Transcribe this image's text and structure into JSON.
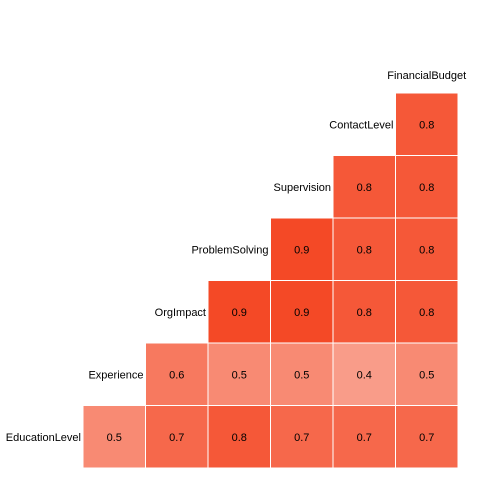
{
  "chart_data": {
    "type": "heatmap",
    "subtype": "lower-triangular correlation matrix",
    "variables": [
      "EducationLevel",
      "Experience",
      "OrgImpact",
      "ProblemSolving",
      "Supervision",
      "ContactLevel",
      "FinancialBudget"
    ],
    "cells": [
      {
        "row": "EducationLevel",
        "col": "EducationLevel",
        "value": 0.5
      },
      {
        "row": "EducationLevel",
        "col": "Experience",
        "value": 0.7
      },
      {
        "row": "EducationLevel",
        "col": "OrgImpact",
        "value": 0.8
      },
      {
        "row": "EducationLevel",
        "col": "ProblemSolving",
        "value": 0.7
      },
      {
        "row": "EducationLevel",
        "col": "Supervision",
        "value": 0.7
      },
      {
        "row": "EducationLevel",
        "col": "ContactLevel",
        "value": 0.7
      },
      {
        "row": "Experience",
        "col": "Experience",
        "value": 0.6
      },
      {
        "row": "Experience",
        "col": "OrgImpact",
        "value": 0.5
      },
      {
        "row": "Experience",
        "col": "ProblemSolving",
        "value": 0.5
      },
      {
        "row": "Experience",
        "col": "Supervision",
        "value": 0.4
      },
      {
        "row": "Experience",
        "col": "ContactLevel",
        "value": 0.5
      },
      {
        "row": "OrgImpact",
        "col": "OrgImpact",
        "value": 0.9
      },
      {
        "row": "OrgImpact",
        "col": "ProblemSolving",
        "value": 0.9
      },
      {
        "row": "OrgImpact",
        "col": "Supervision",
        "value": 0.8
      },
      {
        "row": "OrgImpact",
        "col": "ContactLevel",
        "value": 0.8
      },
      {
        "row": "ProblemSolving",
        "col": "ProblemSolving",
        "value": 0.9
      },
      {
        "row": "ProblemSolving",
        "col": "Supervision",
        "value": 0.8
      },
      {
        "row": "ProblemSolving",
        "col": "ContactLevel",
        "value": 0.8
      },
      {
        "row": "Supervision",
        "col": "Supervision",
        "value": 0.8
      },
      {
        "row": "Supervision",
        "col": "ContactLevel",
        "value": 0.8
      },
      {
        "row": "ContactLevel",
        "col": "ContactLevel",
        "value": 0.8
      }
    ],
    "grid": false,
    "legend": "none",
    "colors": {
      "low": "#ffffff",
      "high": "#f33a14",
      "background": "#ffffff",
      "cell_border": "#ffffff",
      "text": "#000000"
    }
  }
}
